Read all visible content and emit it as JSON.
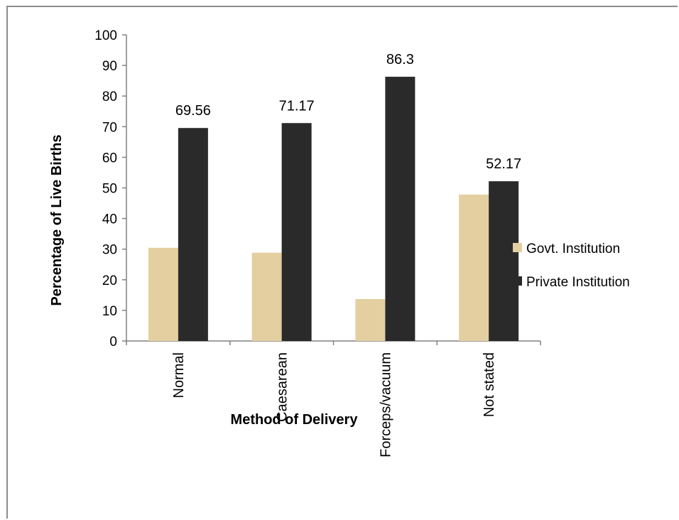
{
  "chart_data": {
    "type": "bar",
    "title": "",
    "xlabel": "Method of Delivery",
    "ylabel": "Percentage of Live Births",
    "categories": [
      "Normal",
      "Caesarean",
      "Forceps/vacuum",
      "Not stated"
    ],
    "series": [
      {
        "name": "Govt. Institution",
        "color": "#e3cfa0",
        "values": [
          30.44,
          28.83,
          13.7,
          47.83
        ],
        "data_labels": [
          "",
          "",
          "",
          ""
        ]
      },
      {
        "name": "Private Institution",
        "color": "#2a2a2a",
        "values": [
          69.56,
          71.17,
          86.3,
          52.17
        ],
        "data_labels": [
          "69.56",
          "71.17",
          "86.3",
          "52.17"
        ]
      }
    ],
    "ylim": [
      0,
      100
    ],
    "yticks": [
      "0",
      "10",
      "20",
      "30",
      "40",
      "50",
      "60",
      "70",
      "80",
      "90",
      "100"
    ],
    "grid": false,
    "legend_position": "right"
  }
}
